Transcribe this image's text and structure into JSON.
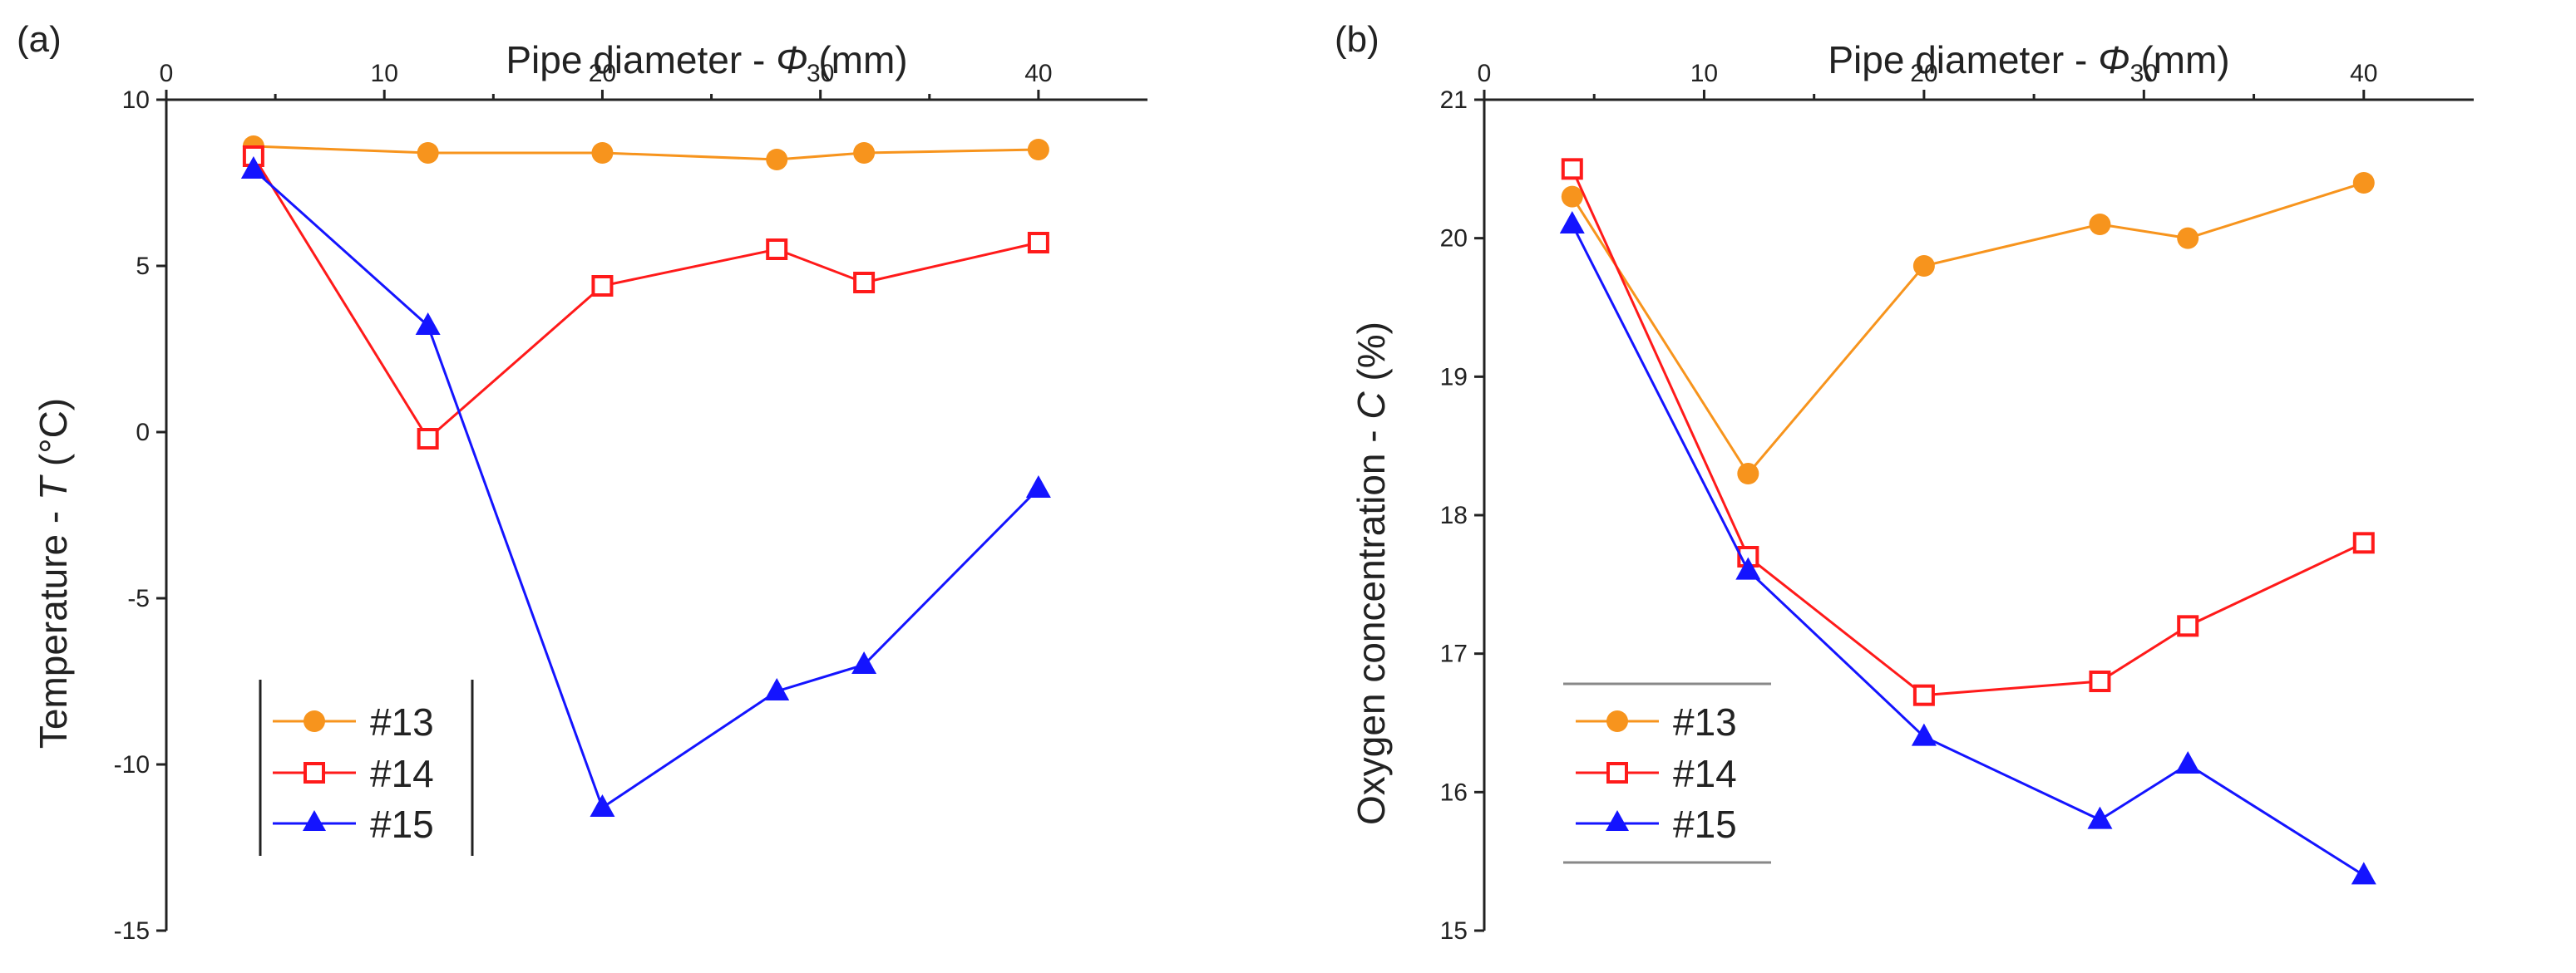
{
  "chart_data": [
    {
      "panel_label": "(a)",
      "type": "line",
      "x_title": "Pipe diameter - ",
      "x_symbol": "Φ",
      "x_unit": " (mm)",
      "y_title": "Temperature - ",
      "y_symbol": "T",
      "y_unit": " (°C)",
      "xlim": [
        0,
        45
      ],
      "ylim": [
        -15,
        10
      ],
      "x_ticks": [
        0,
        10,
        20,
        30,
        40
      ],
      "y_ticks": [
        10,
        5,
        0,
        -5,
        -10,
        -15
      ],
      "x": [
        4,
        12,
        20,
        28,
        32,
        40
      ],
      "series": [
        {
          "name": "#13",
          "color": "#f7941d",
          "marker": "circle",
          "values": [
            8.6,
            8.4,
            8.4,
            8.2,
            8.4,
            8.5
          ]
        },
        {
          "name": "#14",
          "color": "#ff1a1a",
          "marker": "square-open",
          "values": [
            8.3,
            -0.2,
            4.4,
            5.5,
            4.5,
            5.7
          ]
        },
        {
          "name": "#15",
          "color": "#1414ff",
          "marker": "triangle",
          "values": [
            7.9,
            3.2,
            -11.3,
            -7.8,
            -7.0,
            -1.7
          ]
        }
      ],
      "legend": [
        "#13",
        "#14",
        "#15"
      ]
    },
    {
      "panel_label": "(b)",
      "type": "line",
      "x_title": "Pipe diameter - ",
      "x_symbol": "Φ",
      "x_unit": " (mm)",
      "y_title": "Oxygen concentration - ",
      "y_symbol": "C",
      "y_unit": " (%)",
      "xlim": [
        0,
        45
      ],
      "ylim": [
        15,
        21
      ],
      "x_ticks": [
        0,
        10,
        20,
        30,
        40
      ],
      "y_ticks": [
        21,
        20,
        19,
        18,
        17,
        16,
        15
      ],
      "x": [
        4,
        12,
        20,
        28,
        32,
        40
      ],
      "series": [
        {
          "name": "#13",
          "color": "#f7941d",
          "marker": "circle",
          "values": [
            20.3,
            18.3,
            19.8,
            20.1,
            20.0,
            20.4
          ]
        },
        {
          "name": "#14",
          "color": "#ff1a1a",
          "marker": "square-open",
          "values": [
            20.5,
            17.7,
            16.7,
            16.8,
            17.2,
            17.8
          ]
        },
        {
          "name": "#15",
          "color": "#1414ff",
          "marker": "triangle",
          "values": [
            20.1,
            17.6,
            16.4,
            15.8,
            16.2,
            15.4
          ]
        }
      ],
      "legend": [
        "#13",
        "#14",
        "#15"
      ]
    }
  ]
}
